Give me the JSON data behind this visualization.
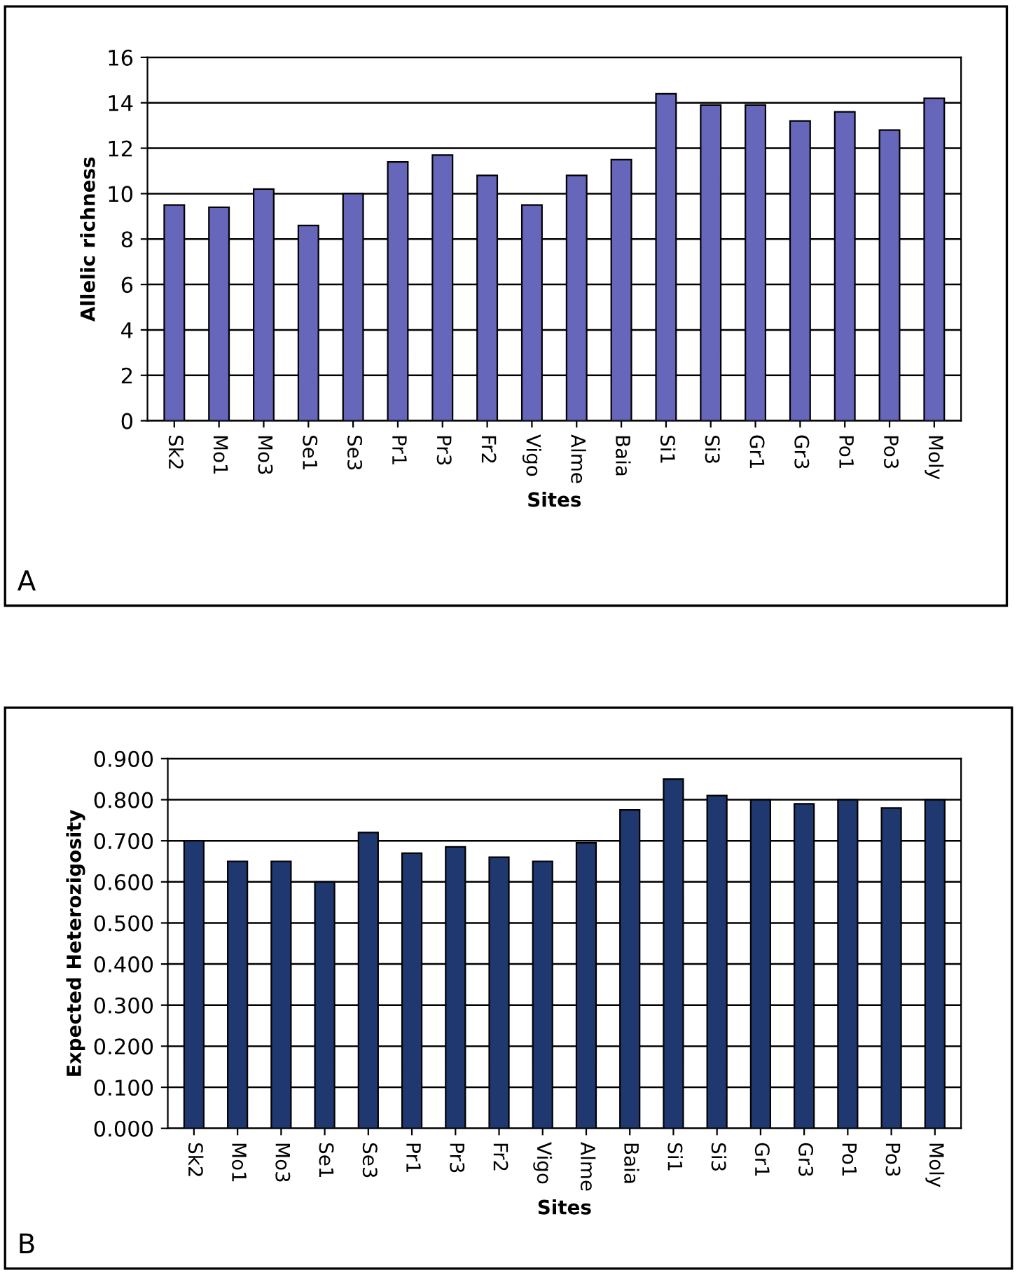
{
  "chart_data": [
    {
      "type": "bar",
      "xlabel": "Sites",
      "ylabel": "Allelic richness",
      "annotations": [
        "A"
      ],
      "categories": [
        "Sk2",
        "Mo1",
        "Mo3",
        "Se1",
        "Se3",
        "Pr1",
        "Pr3",
        "Fr2",
        "Vigo",
        "Alme",
        "Baia",
        "Si1",
        "Si3",
        "Gr1",
        "Gr3",
        "Po1",
        "Po3",
        "Moly"
      ],
      "values": [
        9.5,
        9.4,
        10.2,
        8.6,
        10.0,
        11.4,
        11.7,
        10.8,
        9.5,
        10.8,
        11.5,
        14.4,
        13.9,
        13.9,
        13.2,
        13.6,
        12.8,
        14.2
      ],
      "color": "#6666bb",
      "ylim": [
        0,
        16
      ],
      "yticks": [
        0,
        2,
        4,
        6,
        8,
        10,
        12,
        14,
        16
      ],
      "grid": "y",
      "legend": false
    },
    {
      "type": "bar",
      "xlabel": "Sites",
      "ylabel": "Expected Heterozigosity",
      "annotations": [
        "B"
      ],
      "categories": [
        "Sk2",
        "Mo1",
        "Mo3",
        "Se1",
        "Se3",
        "Pr1",
        "Pr3",
        "Fr2",
        "Vigo",
        "Alme",
        "Baia",
        "Si1",
        "Si3",
        "Gr1",
        "Gr3",
        "Po1",
        "Po3",
        "Moly"
      ],
      "values": [
        0.7,
        0.65,
        0.65,
        0.6,
        0.72,
        0.67,
        0.685,
        0.66,
        0.65,
        0.695,
        0.775,
        0.85,
        0.81,
        0.8,
        0.79,
        0.8,
        0.78,
        0.8
      ],
      "color": "#203870",
      "ylim": [
        0,
        0.9
      ],
      "yticks": [
        {
          "value": 0,
          "label": "0.000"
        },
        {
          "value": 0.1,
          "label": "0.100"
        },
        {
          "value": 0.2,
          "label": "0.200"
        },
        {
          "value": 0.3,
          "label": "0.300"
        },
        {
          "value": 0.4,
          "label": "0.400"
        },
        {
          "value": 0.5,
          "label": "0.500"
        },
        {
          "value": 0.6,
          "label": "0.600"
        },
        {
          "value": 0.7,
          "label": "0.700"
        },
        {
          "value": 0.8,
          "label": "0.800"
        },
        {
          "value": 0.9,
          "label": "0.900"
        }
      ],
      "grid": "y",
      "legend": false
    }
  ]
}
